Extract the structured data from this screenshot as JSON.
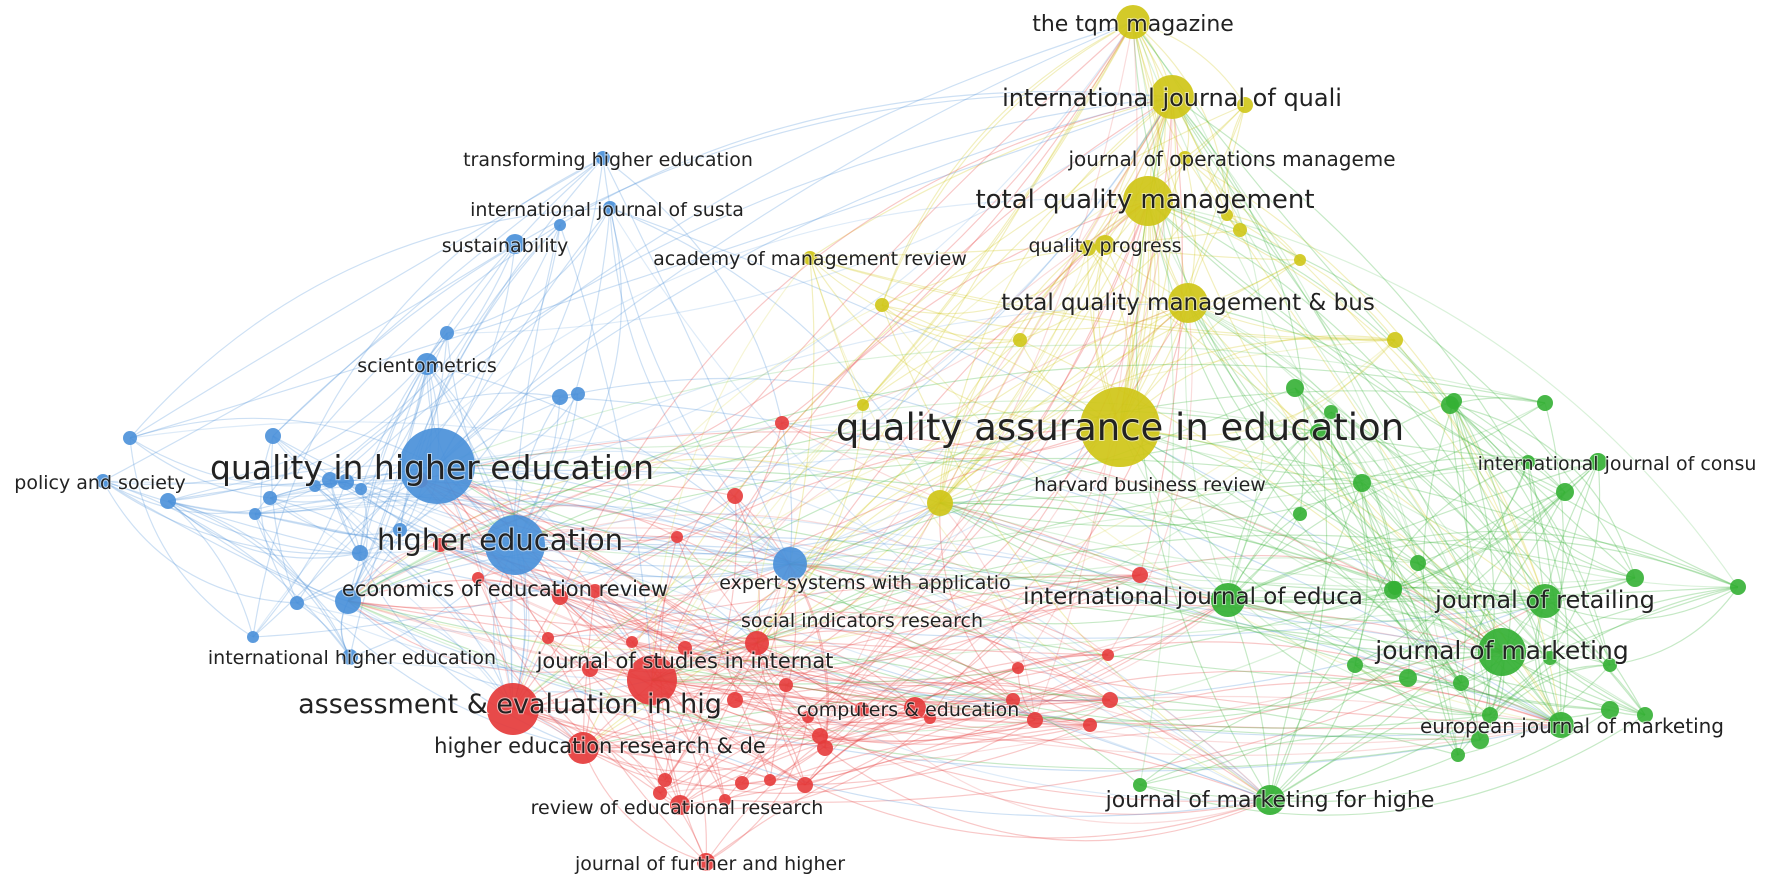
{
  "clusters": [
    {
      "id": "red",
      "color": "#e53b3b"
    },
    {
      "id": "green",
      "color": "#34b034"
    },
    {
      "id": "blue",
      "color": "#4a90d9"
    },
    {
      "id": "yellow",
      "color": "#cfc617"
    }
  ],
  "nodes": [
    {
      "label": "quality assurance in education",
      "cluster": "yellow",
      "weight": 1.0
    },
    {
      "label": "quality in higher education",
      "cluster": "blue",
      "weight": 1.0
    },
    {
      "label": "higher education",
      "cluster": "blue",
      "weight": 0.75
    },
    {
      "label": "assessment & evaluation in hig",
      "cluster": "red",
      "weight": 0.65
    },
    {
      "label": "the tqm magazine",
      "cluster": "yellow",
      "weight": 0.45
    },
    {
      "label": "international journal of quali",
      "cluster": "yellow",
      "weight": 0.55
    },
    {
      "label": "journal of operations manageme",
      "cluster": "yellow",
      "weight": 0.3
    },
    {
      "label": "total quality management",
      "cluster": "yellow",
      "weight": 0.6
    },
    {
      "label": "quality progress",
      "cluster": "yellow",
      "weight": 0.3
    },
    {
      "label": "academy of management review",
      "cluster": "yellow",
      "weight": 0.3
    },
    {
      "label": "total quality management & bus",
      "cluster": "yellow",
      "weight": 0.5
    },
    {
      "label": "harvard business review",
      "cluster": "yellow",
      "weight": 0.3
    },
    {
      "label": "transforming higher education",
      "cluster": "blue",
      "weight": 0.25
    },
    {
      "label": "international journal of susta",
      "cluster": "blue",
      "weight": 0.25
    },
    {
      "label": "sustainability",
      "cluster": "blue",
      "weight": 0.3
    },
    {
      "label": "scientometrics",
      "cluster": "blue",
      "weight": 0.3
    },
    {
      "label": "policy and society",
      "cluster": "blue",
      "weight": 0.25
    },
    {
      "label": "economics of education review",
      "cluster": "blue",
      "weight": 0.35
    },
    {
      "label": "international higher education",
      "cluster": "blue",
      "weight": 0.3
    },
    {
      "label": "expert systems with applicatio",
      "cluster": "blue",
      "weight": 0.4
    },
    {
      "label": "social indicators research",
      "cluster": "red",
      "weight": 0.3
    },
    {
      "label": "journal of studies in internat",
      "cluster": "red",
      "weight": 0.5
    },
    {
      "label": "computers & education",
      "cluster": "red",
      "weight": 0.3
    },
    {
      "label": "higher education research & de",
      "cluster": "red",
      "weight": 0.4
    },
    {
      "label": "review of educational research",
      "cluster": "red",
      "weight": 0.3
    },
    {
      "label": "journal of further and higher",
      "cluster": "red",
      "weight": 0.3
    },
    {
      "label": "international journal of consu",
      "cluster": "green",
      "weight": 0.3
    },
    {
      "label": "international journal of educa",
      "cluster": "green",
      "weight": 0.45
    },
    {
      "label": "journal of retailing",
      "cluster": "green",
      "weight": 0.45
    },
    {
      "label": "journal of marketing",
      "cluster": "green",
      "weight": 0.6
    },
    {
      "label": "european journal of marketing",
      "cluster": "green",
      "weight": 0.35
    },
    {
      "label": "journal of marketing for highe",
      "cluster": "green",
      "weight": 0.4
    }
  ]
}
